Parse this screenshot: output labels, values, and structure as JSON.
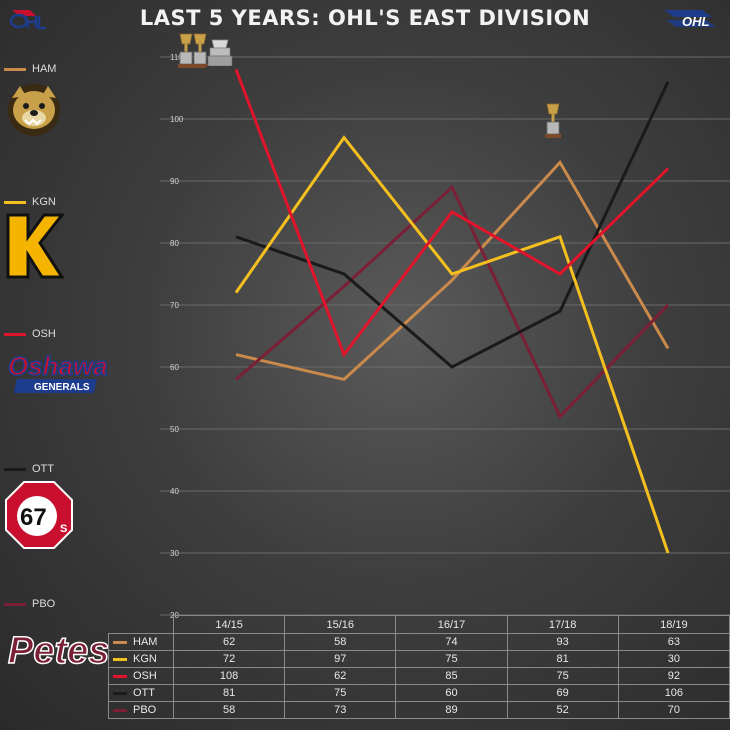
{
  "title": "LAST 5 YEARS: OHL'S EAST DIVISION",
  "logos": {
    "left": "ohl-small-logo",
    "right": "ohl-logo",
    "right_text": "OHL"
  },
  "legend": [
    {
      "key": "HAM",
      "color": "#c98a4b",
      "logo": "hamilton-bulldogs-logo"
    },
    {
      "key": "KGN",
      "color": "#f4c020",
      "logo": "kingston-frontenacs-logo",
      "logo_text": "K"
    },
    {
      "key": "OSH",
      "color": "#e0142b",
      "logo": "oshawa-generals-logo",
      "logo_text": "Oshawa",
      "logo_subtext": "GENERALS"
    },
    {
      "key": "OTT",
      "color": "#1a1a1a",
      "logo": "ottawa-67s-logo",
      "logo_text": "67",
      "logo_subtext": "S"
    },
    {
      "key": "PBO",
      "color": "#7a1f35",
      "logo": "peterborough-petes-logo",
      "logo_text": "Petes"
    }
  ],
  "chart_data": {
    "type": "line",
    "title": "LAST 5 YEARS: OHL'S EAST DIVISION",
    "xlabel": "",
    "ylabel": "",
    "categories": [
      "14/15",
      "15/16",
      "16/17",
      "17/18",
      "18/19"
    ],
    "ylim": [
      20,
      110
    ],
    "yticks": [
      20,
      30,
      40,
      50,
      60,
      70,
      80,
      90,
      100,
      110
    ],
    "grid": true,
    "legend_position": "left",
    "series": [
      {
        "name": "HAM",
        "color": "#c98a4b",
        "values": [
          62,
          58,
          74,
          93,
          63
        ]
      },
      {
        "name": "KGN",
        "color": "#f4c020",
        "values": [
          72,
          97,
          75,
          81,
          30
        ]
      },
      {
        "name": "OSH",
        "color": "#e0142b",
        "values": [
          108,
          62,
          85,
          75,
          92
        ]
      },
      {
        "name": "OTT",
        "color": "#1a1a1a",
        "values": [
          81,
          75,
          60,
          69,
          106
        ]
      },
      {
        "name": "PBO",
        "color": "#7a1f35",
        "values": [
          58,
          73,
          89,
          52,
          70
        ]
      }
    ],
    "annotations": [
      {
        "icon": "trophy-icon",
        "x": "14/15",
        "series": "OSH",
        "count": 2
      },
      {
        "icon": "cup-icon",
        "x": "14/15",
        "series": "OSH"
      },
      {
        "icon": "trophy-icon",
        "x": "17/18",
        "series": "HAM",
        "count": 1
      }
    ]
  }
}
